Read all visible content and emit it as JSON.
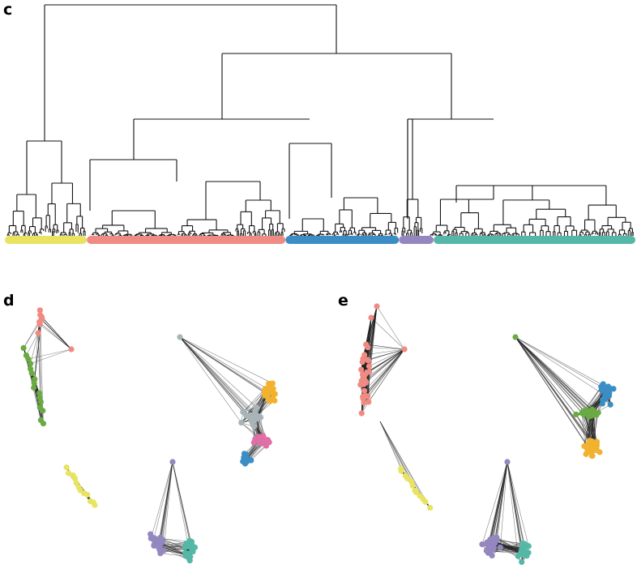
{
  "panels": {
    "c": {
      "letter": "c"
    },
    "d": {
      "letter": "d"
    },
    "e": {
      "letter": "e"
    }
  },
  "colors": {
    "yellow": "#e8e461",
    "salmon": "#ef8b82",
    "blue": "#3b8ec5",
    "purple": "#9487c0",
    "teal": "#55b8a6",
    "green": "#6aaa43",
    "grey": "#a8b4b7",
    "orange": "#f2b22e",
    "pink": "#df6fa5",
    "edge": "#222222",
    "black": "#111111"
  },
  "dendrogram": {
    "leaf_bar": [
      {
        "color": "yellow",
        "share": 0.13
      },
      {
        "color": "salmon",
        "share": 0.315
      },
      {
        "color": "blue",
        "share": 0.18
      },
      {
        "color": "purple",
        "share": 0.055
      },
      {
        "color": "teal",
        "share": 0.32
      }
    ]
  },
  "network_d": {
    "clusters": [
      {
        "color": "salmon",
        "count": 9
      },
      {
        "color": "green",
        "count": 16
      },
      {
        "color": "yellow",
        "count": 12
      },
      {
        "color": "purple",
        "count": 24
      },
      {
        "color": "teal",
        "count": 22
      },
      {
        "color": "grey",
        "count": 20
      },
      {
        "color": "orange",
        "count": 22
      },
      {
        "color": "pink",
        "count": 18
      },
      {
        "color": "blue",
        "count": 14
      }
    ]
  },
  "network_e": {
    "clusters": [
      {
        "color": "salmon",
        "count": 28
      },
      {
        "color": "yellow",
        "count": 12
      },
      {
        "color": "green",
        "count": 24
      },
      {
        "color": "blue",
        "count": 22
      },
      {
        "color": "orange",
        "count": 28
      },
      {
        "color": "purple",
        "count": 26
      },
      {
        "color": "teal",
        "count": 22
      }
    ]
  }
}
